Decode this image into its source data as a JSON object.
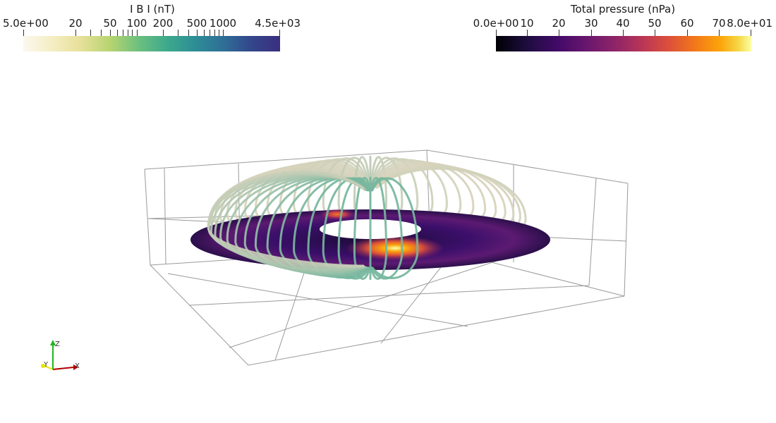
{
  "legend_b": {
    "title": "I B I  (nT)",
    "labels": [
      "5.0e+00",
      "20",
      "50",
      "100",
      "200",
      "500",
      "1000",
      "4.5e+03"
    ],
    "gradient": [
      "#fbf8ee",
      "#e8e09a",
      "#6cc07e",
      "#2e8d95",
      "#33498c",
      "#3b2e7e"
    ]
  },
  "legend_p": {
    "title": "Total pressure (nPa)",
    "labels": [
      "0.0e+00",
      "10",
      "20",
      "30",
      "40",
      "50",
      "60",
      "70",
      "8.0e+01"
    ],
    "gradient": [
      "#000004",
      "#420a68",
      "#932667",
      "#dd513a",
      "#fca50a",
      "#fcffa4"
    ]
  },
  "axes": {
    "x_label": "X",
    "y_label": "Y",
    "z_label": "Z",
    "x_color": "#b30000",
    "y_color": "#e6e600",
    "z_color": "#1fb51f"
  },
  "field_lines": {
    "count": 64,
    "outer_color": "#d9d3bd",
    "inner_color": "#4aa98f"
  }
}
